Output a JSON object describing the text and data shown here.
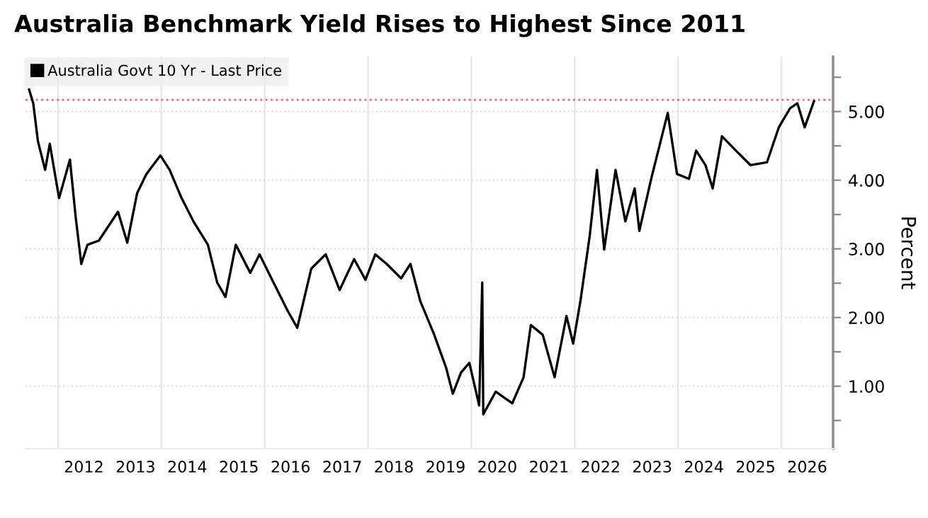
{
  "chart_data": {
    "type": "line",
    "title": "Australia Benchmark Yield Rises to Highest Since 2011",
    "ylabel": "Percent",
    "x": [
      2011.44,
      2011.52,
      2011.61,
      2011.75,
      2011.84,
      2012.02,
      2012.23,
      2012.34,
      2012.45,
      2012.57,
      2012.79,
      2013.16,
      2013.34,
      2013.53,
      2013.71,
      2013.98,
      2014.16,
      2014.39,
      2014.62,
      2014.9,
      2015.08,
      2015.24,
      2015.44,
      2015.72,
      2015.9,
      2016.17,
      2016.45,
      2016.63,
      2016.9,
      2017.18,
      2017.45,
      2017.73,
      2017.95,
      2018.14,
      2018.36,
      2018.64,
      2018.82,
      2019.01,
      2019.28,
      2019.51,
      2019.64,
      2019.8,
      2019.96,
      2020.15,
      2020.21,
      2020.23,
      2020.47,
      2020.79,
      2021.01,
      2021.15,
      2021.38,
      2021.61,
      2021.84,
      2021.97,
      2022.11,
      2022.29,
      2022.43,
      2022.57,
      2022.79,
      2022.98,
      2023.16,
      2023.25,
      2023.48,
      2023.8,
      2023.98,
      2024.21,
      2024.35,
      2024.53,
      2024.67,
      2024.85,
      2025.12,
      2025.4,
      2025.72,
      2025.95,
      2026.17,
      2026.31,
      2026.45,
      2026.63
    ],
    "series": [
      {
        "name": "Australia Govt 10 Yr - Last Price",
        "color": "#000000",
        "values": [
          5.32,
          5.12,
          4.57,
          4.15,
          4.53,
          3.74,
          4.3,
          3.47,
          2.78,
          3.06,
          3.12,
          3.54,
          3.09,
          3.81,
          4.09,
          4.36,
          4.15,
          3.74,
          3.4,
          3.06,
          2.51,
          2.3,
          3.06,
          2.65,
          2.92,
          2.51,
          2.09,
          1.85,
          2.71,
          2.92,
          2.4,
          2.85,
          2.55,
          2.92,
          2.78,
          2.57,
          2.78,
          2.24,
          1.75,
          1.27,
          0.89,
          1.2,
          1.34,
          0.72,
          2.51,
          0.59,
          0.92,
          0.75,
          1.13,
          1.89,
          1.75,
          1.13,
          2.02,
          1.62,
          2.24,
          3.19,
          4.15,
          2.99,
          4.15,
          3.4,
          3.88,
          3.26,
          4.02,
          4.98,
          4.09,
          4.02,
          4.43,
          4.22,
          3.88,
          4.64,
          4.43,
          4.22,
          4.26,
          4.77,
          5.05,
          5.12,
          4.77,
          5.15
        ]
      }
    ],
    "xlim": [
      2011.37,
      2027.0
    ],
    "xticks": [
      {
        "value": 2012,
        "label": null
      },
      {
        "value": 2012.5,
        "label": "2012"
      },
      {
        "value": 2013.5,
        "label": "2013"
      },
      {
        "value": 2014,
        "label": null
      },
      {
        "value": 2014.5,
        "label": "2014"
      },
      {
        "value": 2015.5,
        "label": "2015"
      },
      {
        "value": 2016,
        "label": null
      },
      {
        "value": 2016.5,
        "label": "2016"
      },
      {
        "value": 2017.5,
        "label": "2017"
      },
      {
        "value": 2018,
        "label": null
      },
      {
        "value": 2018.5,
        "label": "2018"
      },
      {
        "value": 2019.5,
        "label": "2019"
      },
      {
        "value": 2020,
        "label": null
      },
      {
        "value": 2020.5,
        "label": "2020"
      },
      {
        "value": 2021.5,
        "label": "2021"
      },
      {
        "value": 2022,
        "label": null
      },
      {
        "value": 2022.5,
        "label": "2022"
      },
      {
        "value": 2023.5,
        "label": "2023"
      },
      {
        "value": 2024,
        "label": null
      },
      {
        "value": 2024.5,
        "label": "2024"
      },
      {
        "value": 2025.5,
        "label": "2025"
      },
      {
        "value": 2026,
        "label": null
      },
      {
        "value": 2026.5,
        "label": "2026"
      }
    ],
    "ylim": [
      0.09,
      5.8
    ],
    "yticks": [
      {
        "value": 0.5,
        "label": null
      },
      {
        "value": 1,
        "label": "1.00"
      },
      {
        "value": 1.5,
        "label": null
      },
      {
        "value": 2,
        "label": "2.00"
      },
      {
        "value": 2.5,
        "label": null
      },
      {
        "value": 3,
        "label": "3.00"
      },
      {
        "value": 3.5,
        "label": null
      },
      {
        "value": 4,
        "label": "4.00"
      },
      {
        "value": 4.5,
        "label": null
      },
      {
        "value": 5,
        "label": "5.00"
      },
      {
        "value": 5.5,
        "label": null
      }
    ],
    "ref_lines": [
      {
        "axis": "y",
        "value": 5.17,
        "color": "#f06080",
        "line_style": "dotted"
      }
    ],
    "grid": true,
    "legend": "top left",
    "marker": "none",
    "line_style": "solid"
  }
}
